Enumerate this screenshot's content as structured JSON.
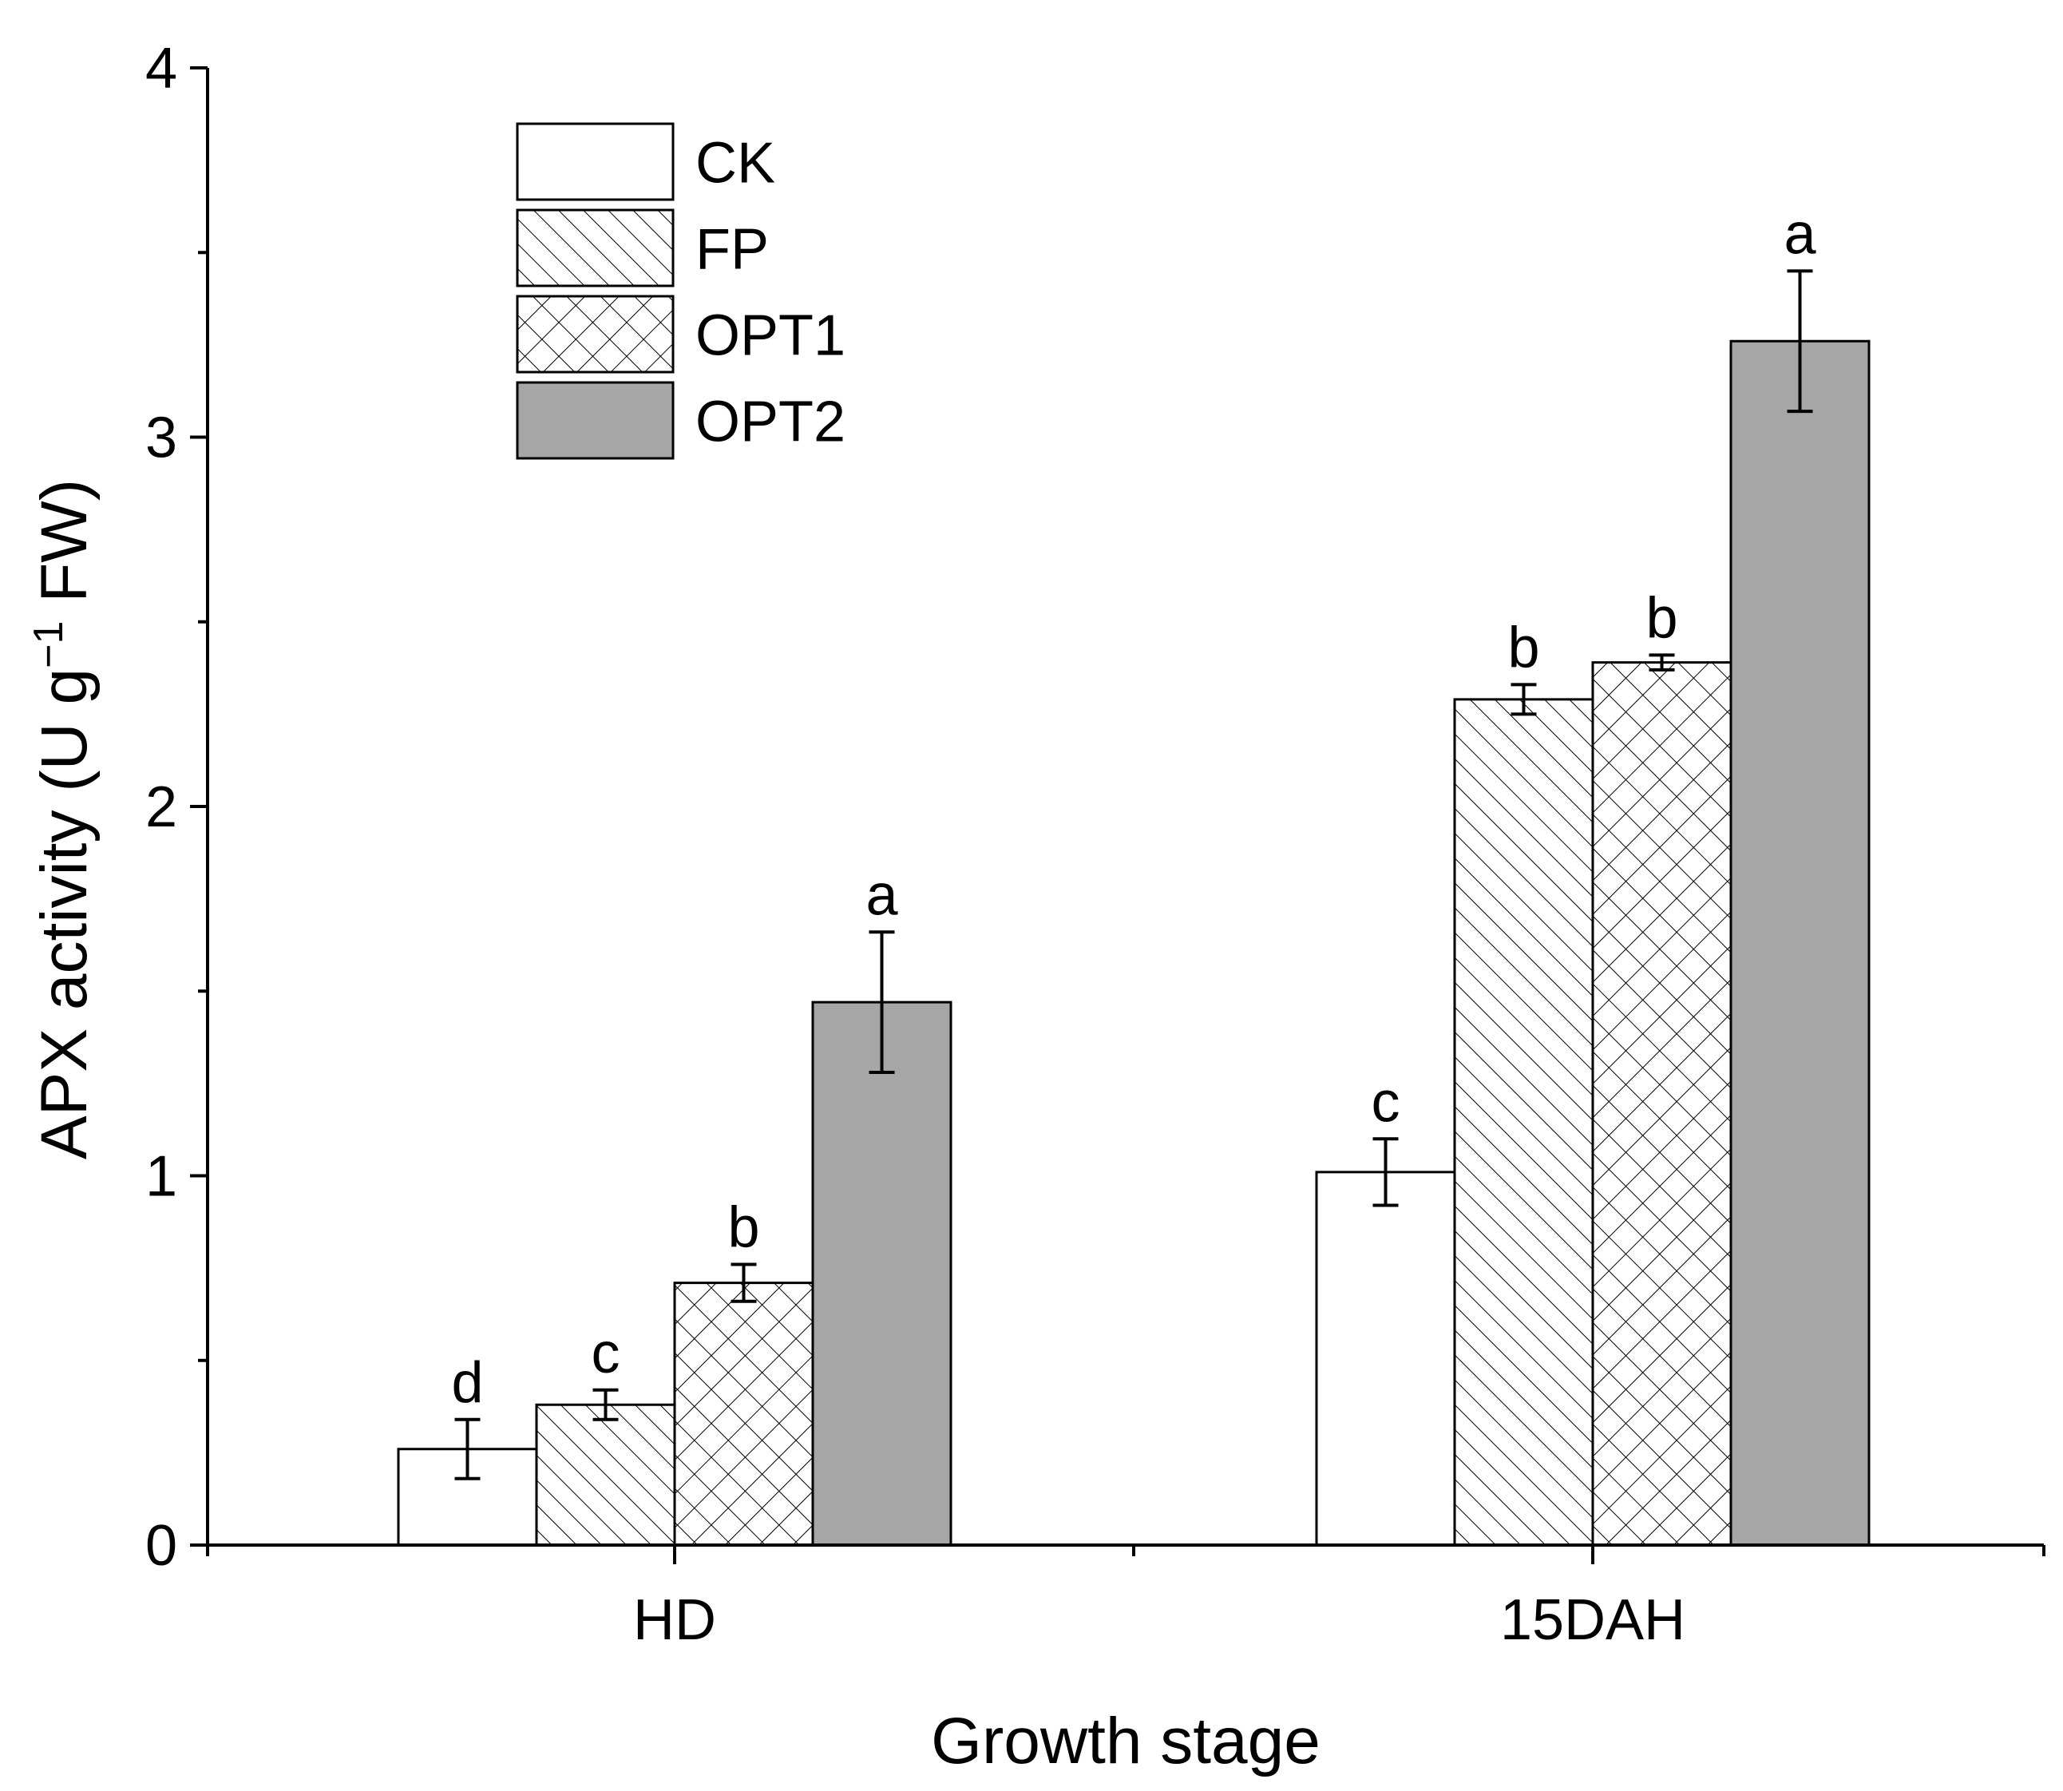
{
  "chart_data": {
    "type": "bar",
    "ylabel": "APX activity (U g⁻¹ FW)",
    "ylabel_main": "APX activity (U g",
    "ylabel_sup": "−1",
    "ylabel_end": " FW)",
    "xlabel": "Growth stage",
    "ylim": [
      0,
      4
    ],
    "yticks": [
      "0",
      "1",
      "2",
      "3",
      "4"
    ],
    "categories": [
      "HD",
      "15DAH"
    ],
    "series": [
      {
        "name": "CK",
        "pattern": "empty",
        "values": [
          0.26,
          1.01
        ],
        "errors": [
          0.08,
          0.09
        ],
        "letters": [
          "d",
          "c"
        ]
      },
      {
        "name": "FP",
        "pattern": "diagonal",
        "values": [
          0.38,
          2.29
        ],
        "errors": [
          0.04,
          0.04
        ],
        "letters": [
          "c",
          "b"
        ]
      },
      {
        "name": "OPT1",
        "pattern": "crosshatch",
        "values": [
          0.71,
          2.39
        ],
        "errors": [
          0.05,
          0.02
        ],
        "letters": [
          "b",
          "b"
        ]
      },
      {
        "name": "OPT2",
        "pattern": "solid",
        "values": [
          1.47,
          3.26
        ],
        "errors": [
          0.19,
          0.19
        ],
        "letters": [
          "a",
          "a"
        ]
      }
    ],
    "legend_position": "top-left",
    "colors": {
      "solid": "#a6a6a6",
      "stroke": "#000000",
      "empty": "#ffffff"
    }
  }
}
